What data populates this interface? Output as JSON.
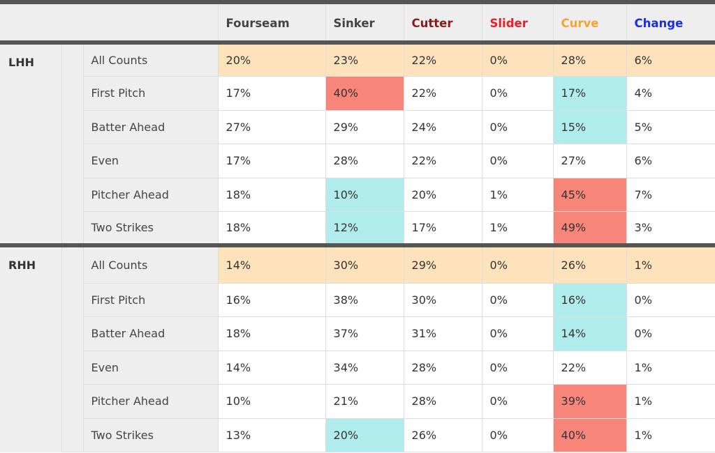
{
  "columns": [
    {
      "label": "Fourseam",
      "color": "#444444"
    },
    {
      "label": "Sinker",
      "color": "#444444"
    },
    {
      "label": "Cutter",
      "color": "#8b1a1a"
    },
    {
      "label": "Slider",
      "color": "#e8202a"
    },
    {
      "label": "Curve",
      "color": "#f5a431"
    },
    {
      "label": "Change",
      "color": "#1a2ee8"
    }
  ],
  "groups": [
    {
      "hand": "LHH",
      "rows": [
        {
          "count": "All Counts",
          "values": [
            "20%",
            "23%",
            "22%",
            "0%",
            "28%",
            "6%"
          ],
          "highlight": [
            "",
            "",
            "",
            "",
            "",
            ""
          ]
        },
        {
          "count": "First Pitch",
          "values": [
            "17%",
            "40%",
            "22%",
            "0%",
            "17%",
            "4%"
          ],
          "highlight": [
            "",
            "hi",
            "",
            "",
            "lo",
            ""
          ]
        },
        {
          "count": "Batter Ahead",
          "values": [
            "27%",
            "29%",
            "24%",
            "0%",
            "15%",
            "5%"
          ],
          "highlight": [
            "",
            "",
            "",
            "",
            "lo",
            ""
          ]
        },
        {
          "count": "Even",
          "values": [
            "17%",
            "28%",
            "22%",
            "0%",
            "27%",
            "6%"
          ],
          "highlight": [
            "",
            "",
            "",
            "",
            "",
            ""
          ]
        },
        {
          "count": "Pitcher Ahead",
          "values": [
            "18%",
            "10%",
            "20%",
            "1%",
            "45%",
            "7%"
          ],
          "highlight": [
            "",
            "lo",
            "",
            "",
            "hi",
            ""
          ]
        },
        {
          "count": "Two Strikes",
          "values": [
            "18%",
            "12%",
            "17%",
            "1%",
            "49%",
            "3%"
          ],
          "highlight": [
            "",
            "lo",
            "",
            "",
            "hi",
            ""
          ]
        }
      ]
    },
    {
      "hand": "RHH",
      "rows": [
        {
          "count": "All Counts",
          "values": [
            "14%",
            "30%",
            "29%",
            "0%",
            "26%",
            "1%"
          ],
          "highlight": [
            "",
            "",
            "",
            "",
            "",
            ""
          ]
        },
        {
          "count": "First Pitch",
          "values": [
            "16%",
            "38%",
            "30%",
            "0%",
            "16%",
            "0%"
          ],
          "highlight": [
            "",
            "",
            "",
            "",
            "lo",
            ""
          ]
        },
        {
          "count": "Batter Ahead",
          "values": [
            "18%",
            "37%",
            "31%",
            "0%",
            "14%",
            "0%"
          ],
          "highlight": [
            "",
            "",
            "",
            "",
            "lo",
            ""
          ]
        },
        {
          "count": "Even",
          "values": [
            "14%",
            "34%",
            "28%",
            "0%",
            "22%",
            "1%"
          ],
          "highlight": [
            "",
            "",
            "",
            "",
            "",
            ""
          ]
        },
        {
          "count": "Pitcher Ahead",
          "values": [
            "10%",
            "21%",
            "28%",
            "0%",
            "39%",
            "1%"
          ],
          "highlight": [
            "",
            "",
            "",
            "",
            "hi",
            ""
          ]
        },
        {
          "count": "Two Strikes",
          "values": [
            "13%",
            "20%",
            "26%",
            "0%",
            "40%",
            "1%"
          ],
          "highlight": [
            "",
            "lo",
            "",
            "",
            "hi",
            ""
          ]
        }
      ]
    }
  ],
  "colors": {
    "all_counts_bg": "#fde2bc",
    "high_bg": "#f8857a",
    "low_bg": "#b1eced"
  },
  "chart_data": {
    "type": "table",
    "columns": [
      "Fourseam",
      "Sinker",
      "Cutter",
      "Slider",
      "Curve",
      "Change"
    ],
    "row_groups": [
      "LHH",
      "RHH"
    ],
    "row_labels": [
      "All Counts",
      "First Pitch",
      "Batter Ahead",
      "Even",
      "Pitcher Ahead",
      "Two Strikes"
    ],
    "values": {
      "LHH": [
        [
          20,
          23,
          22,
          0,
          28,
          6
        ],
        [
          17,
          40,
          22,
          0,
          17,
          4
        ],
        [
          27,
          29,
          24,
          0,
          15,
          5
        ],
        [
          17,
          28,
          22,
          0,
          27,
          6
        ],
        [
          18,
          10,
          20,
          1,
          45,
          7
        ],
        [
          18,
          12,
          17,
          1,
          49,
          3
        ]
      ],
      "RHH": [
        [
          14,
          30,
          29,
          0,
          26,
          1
        ],
        [
          16,
          38,
          30,
          0,
          16,
          0
        ],
        [
          18,
          37,
          31,
          0,
          14,
          0
        ],
        [
          14,
          34,
          28,
          0,
          22,
          1
        ],
        [
          10,
          21,
          28,
          0,
          39,
          1
        ],
        [
          13,
          20,
          26,
          0,
          40,
          1
        ]
      ]
    },
    "unit": "%"
  }
}
